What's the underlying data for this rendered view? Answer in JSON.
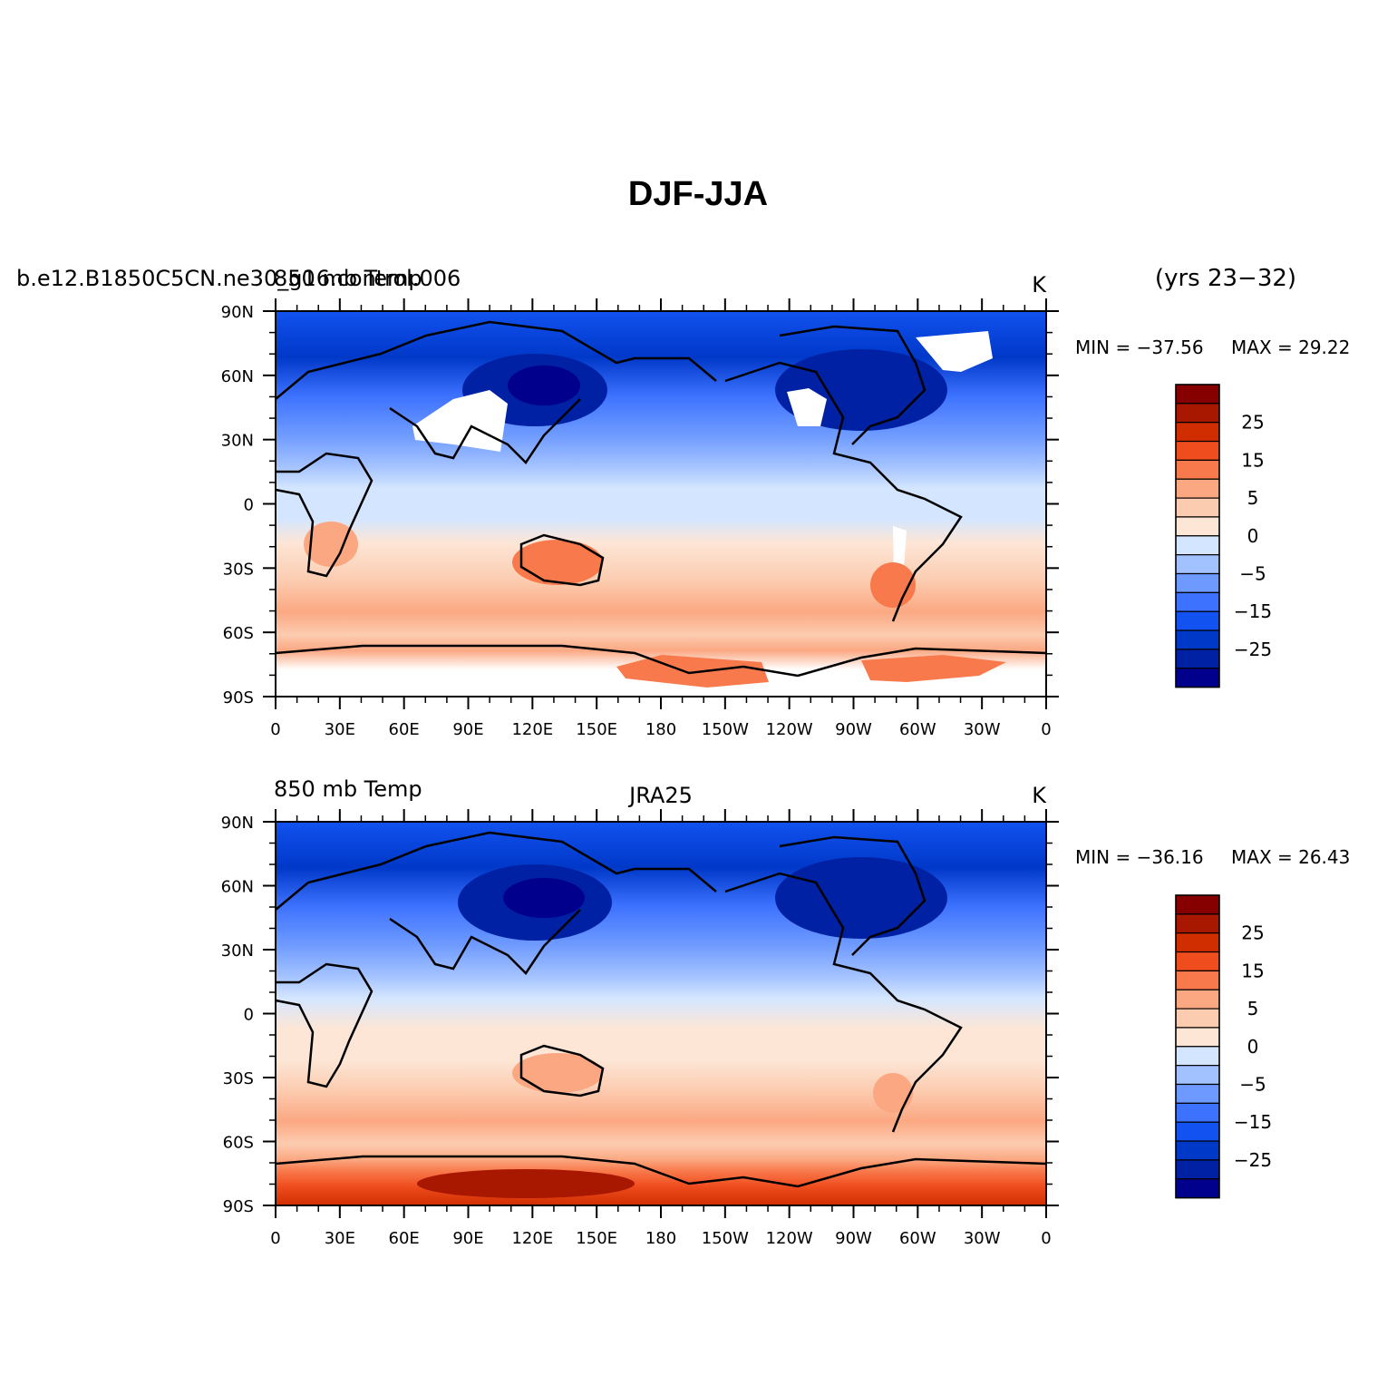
{
  "figure": {
    "title": "DJF-JJA"
  },
  "colorbar": {
    "colors": [
      "#00008c",
      "#0021a3",
      "#0038c8",
      "#1252f0",
      "#3d72ff",
      "#6e9aff",
      "#a2c1ff",
      "#d4e6ff",
      "#fde6d6",
      "#fcccb0",
      "#fba882",
      "#f87a4c",
      "#f04d1f",
      "#d02d00",
      "#a81800",
      "#870000"
    ],
    "labels": [
      "25",
      "15",
      "5",
      "0",
      "−5",
      "−15",
      "−25"
    ]
  },
  "axes": {
    "lat_ticks": [
      "90N",
      "60N",
      "30N",
      "0",
      "30S",
      "60S",
      "90S"
    ],
    "lon_ticks": [
      "0",
      "30E",
      "60E",
      "90E",
      "120E",
      "150E",
      "180",
      "150W",
      "120W",
      "90W",
      "60W",
      "30W",
      "0"
    ]
  },
  "panels": [
    {
      "case_label": "b.e12.B1850C5CN.ne30_g16.control.006",
      "variable_label": "850 mb Temp",
      "center_label": "",
      "units": "K",
      "years": "(yrs 23−32)",
      "min_label": "MIN = −37.56",
      "max_label": "MAX =  29.22"
    },
    {
      "case_label": "",
      "variable_label": "850 mb Temp",
      "center_label": "JRA25",
      "units": "K",
      "years": "",
      "min_label": "MIN = −36.16",
      "max_label": "MAX =  26.43"
    }
  ]
}
